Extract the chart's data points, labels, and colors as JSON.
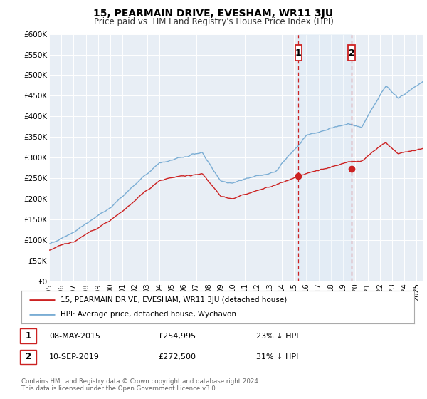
{
  "title": "15, PEARMAIN DRIVE, EVESHAM, WR11 3JU",
  "subtitle": "Price paid vs. HM Land Registry's House Price Index (HPI)",
  "background_color": "#ffffff",
  "plot_bg_color": "#e8eef5",
  "grid_color": "#ffffff",
  "hpi_color": "#7aadd4",
  "hpi_shade_color": "#d8e8f5",
  "sale_color": "#cc2222",
  "ylim": [
    0,
    600000
  ],
  "yticks": [
    0,
    50000,
    100000,
    150000,
    200000,
    250000,
    300000,
    350000,
    400000,
    450000,
    500000,
    550000,
    600000
  ],
  "ytick_labels": [
    "£0",
    "£50K",
    "£100K",
    "£150K",
    "£200K",
    "£250K",
    "£300K",
    "£350K",
    "£400K",
    "£450K",
    "£500K",
    "£550K",
    "£600K"
  ],
  "xlim_start": 1995.0,
  "xlim_end": 2025.5,
  "xticks": [
    1995,
    1996,
    1997,
    1998,
    1999,
    2000,
    2001,
    2002,
    2003,
    2004,
    2005,
    2006,
    2007,
    2008,
    2009,
    2010,
    2011,
    2012,
    2013,
    2014,
    2015,
    2016,
    2017,
    2018,
    2019,
    2020,
    2021,
    2022,
    2023,
    2024,
    2025
  ],
  "sale1_x": 2015.35,
  "sale1_y": 254995,
  "sale1_label": "1",
  "sale1_date": "08-MAY-2015",
  "sale1_price": "£254,995",
  "sale1_pct": "23% ↓ HPI",
  "sale2_x": 2019.69,
  "sale2_y": 272500,
  "sale2_label": "2",
  "sale2_date": "10-SEP-2019",
  "sale2_price": "£272,500",
  "sale2_pct": "31% ↓ HPI",
  "legend_line1": "15, PEARMAIN DRIVE, EVESHAM, WR11 3JU (detached house)",
  "legend_line2": "HPI: Average price, detached house, Wychavon",
  "footer1": "Contains HM Land Registry data © Crown copyright and database right 2024.",
  "footer2": "This data is licensed under the Open Government Licence v3.0."
}
